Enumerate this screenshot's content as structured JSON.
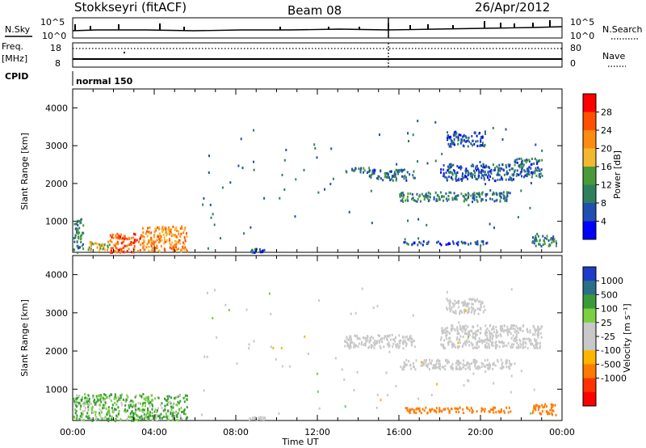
{
  "header": {
    "station": "Stokkseyri (fitACF)",
    "beam": "Beam 08",
    "date": "26/Apr/2012"
  },
  "strips": {
    "noise": {
      "left_label": "N.Sky",
      "right_label": "N.Search",
      "left_ticks": [
        "10^5",
        "10^0"
      ],
      "right_ticks": [
        "10^5",
        "10^0"
      ]
    },
    "freq": {
      "left_label_1": "Freq.",
      "left_label_2": "[MHz]",
      "right_label": "Nave",
      "left_ticks": [
        "18",
        "8"
      ],
      "right_ticks": [
        "80",
        "0"
      ]
    },
    "cpid": {
      "label": "CPID",
      "mode": "normal 150"
    }
  },
  "colors": {
    "power_scale": [
      "#0000ff",
      "#1f4fb0",
      "#2f7f5f",
      "#4a9a3a",
      "#f2b830",
      "#ff8a10",
      "#ff5000",
      "#ff0000"
    ],
    "velocity_scale": [
      "#1e3cc8",
      "#2b6e8a",
      "#3a9a3a",
      "#7ad040",
      "#c8c8c8",
      "#c8c8c8",
      "#ffb400",
      "#ff7a00",
      "#ff3200",
      "#ff0000"
    ]
  },
  "chart_data": [
    {
      "type": "heatmap",
      "name": "power",
      "ylabel": "Slant Range [km]",
      "yticks": [
        "4000",
        "3000",
        "2000",
        "1000"
      ],
      "ylim": [
        180,
        4500
      ],
      "xticks": [
        "00:00",
        "04:00",
        "08:00",
        "12:00",
        "16:00",
        "20:00",
        "00:00"
      ],
      "xlim": [
        0,
        24
      ],
      "colorbar": {
        "label": "Power [dB]",
        "ticks": [
          "28",
          "24",
          "20",
          "16",
          "12",
          "8",
          "4"
        ],
        "range": [
          0,
          32
        ]
      },
      "regions": [
        {
          "t": [
            0.0,
            0.5
          ],
          "r": [
            200,
            1100
          ],
          "v": 10
        },
        {
          "t": [
            0.7,
            1.8
          ],
          "r": [
            250,
            500
          ],
          "v": 18
        },
        {
          "t": [
            1.8,
            3.4
          ],
          "r": [
            200,
            700
          ],
          "v": 26
        },
        {
          "t": [
            3.4,
            5.6
          ],
          "r": [
            220,
            900
          ],
          "v": 22
        },
        {
          "t": [
            8.6,
            9.4
          ],
          "r": [
            200,
            300
          ],
          "v": 6
        },
        {
          "t": [
            13.3,
            14.5
          ],
          "r": [
            2300,
            2450
          ],
          "v": 10
        },
        {
          "t": [
            14.5,
            16.8
          ],
          "r": [
            2100,
            2400
          ],
          "v": 8
        },
        {
          "t": [
            16.0,
            21.5
          ],
          "r": [
            1550,
            1800
          ],
          "v": 10
        },
        {
          "t": [
            18.0,
            21.6
          ],
          "r": [
            2100,
            2550
          ],
          "v": 6
        },
        {
          "t": [
            21.6,
            23.0
          ],
          "r": [
            2200,
            2700
          ],
          "v": 8
        },
        {
          "t": [
            18.3,
            20.2
          ],
          "r": [
            3000,
            3400
          ],
          "v": 6
        },
        {
          "t": [
            16.2,
            20.5
          ],
          "r": [
            400,
            500
          ],
          "v": 5
        },
        {
          "t": [
            22.5,
            23.7
          ],
          "r": [
            350,
            650
          ],
          "v": 10
        }
      ]
    },
    {
      "type": "heatmap",
      "name": "velocity",
      "ylabel": "Slant Range [km]",
      "yticks": [
        "4000",
        "3000",
        "2000",
        "1000"
      ],
      "ylim": [
        180,
        4500
      ],
      "xticks": [
        "00:00",
        "04:00",
        "08:00",
        "12:00",
        "16:00",
        "20:00",
        "00:00"
      ],
      "xlim": [
        0,
        24
      ],
      "xlabel": "Time UT",
      "colorbar": {
        "label": "Velocity [m s⁻¹]",
        "ticks": [
          "1000",
          "500",
          "100",
          "25",
          "-25",
          "-100",
          "-500",
          "-1000"
        ]
      },
      "regions": [
        {
          "t": [
            0.0,
            5.6
          ],
          "r": [
            200,
            900
          ],
          "v": 100
        },
        {
          "t": [
            8.6,
            9.4
          ],
          "r": [
            200,
            300
          ],
          "v": 0
        },
        {
          "t": [
            13.3,
            16.8
          ],
          "r": [
            2100,
            2450
          ],
          "v": 0
        },
        {
          "t": [
            16.0,
            21.6
          ],
          "r": [
            1550,
            1800
          ],
          "v": 0
        },
        {
          "t": [
            18.0,
            23.0
          ],
          "r": [
            2100,
            2700
          ],
          "v": 0
        },
        {
          "t": [
            18.3,
            20.2
          ],
          "r": [
            3000,
            3400
          ],
          "v": 0
        },
        {
          "t": [
            16.2,
            21.5
          ],
          "r": [
            400,
            550
          ],
          "v": -300
        },
        {
          "t": [
            22.5,
            23.7
          ],
          "r": [
            350,
            650
          ],
          "v": -300
        }
      ]
    }
  ]
}
